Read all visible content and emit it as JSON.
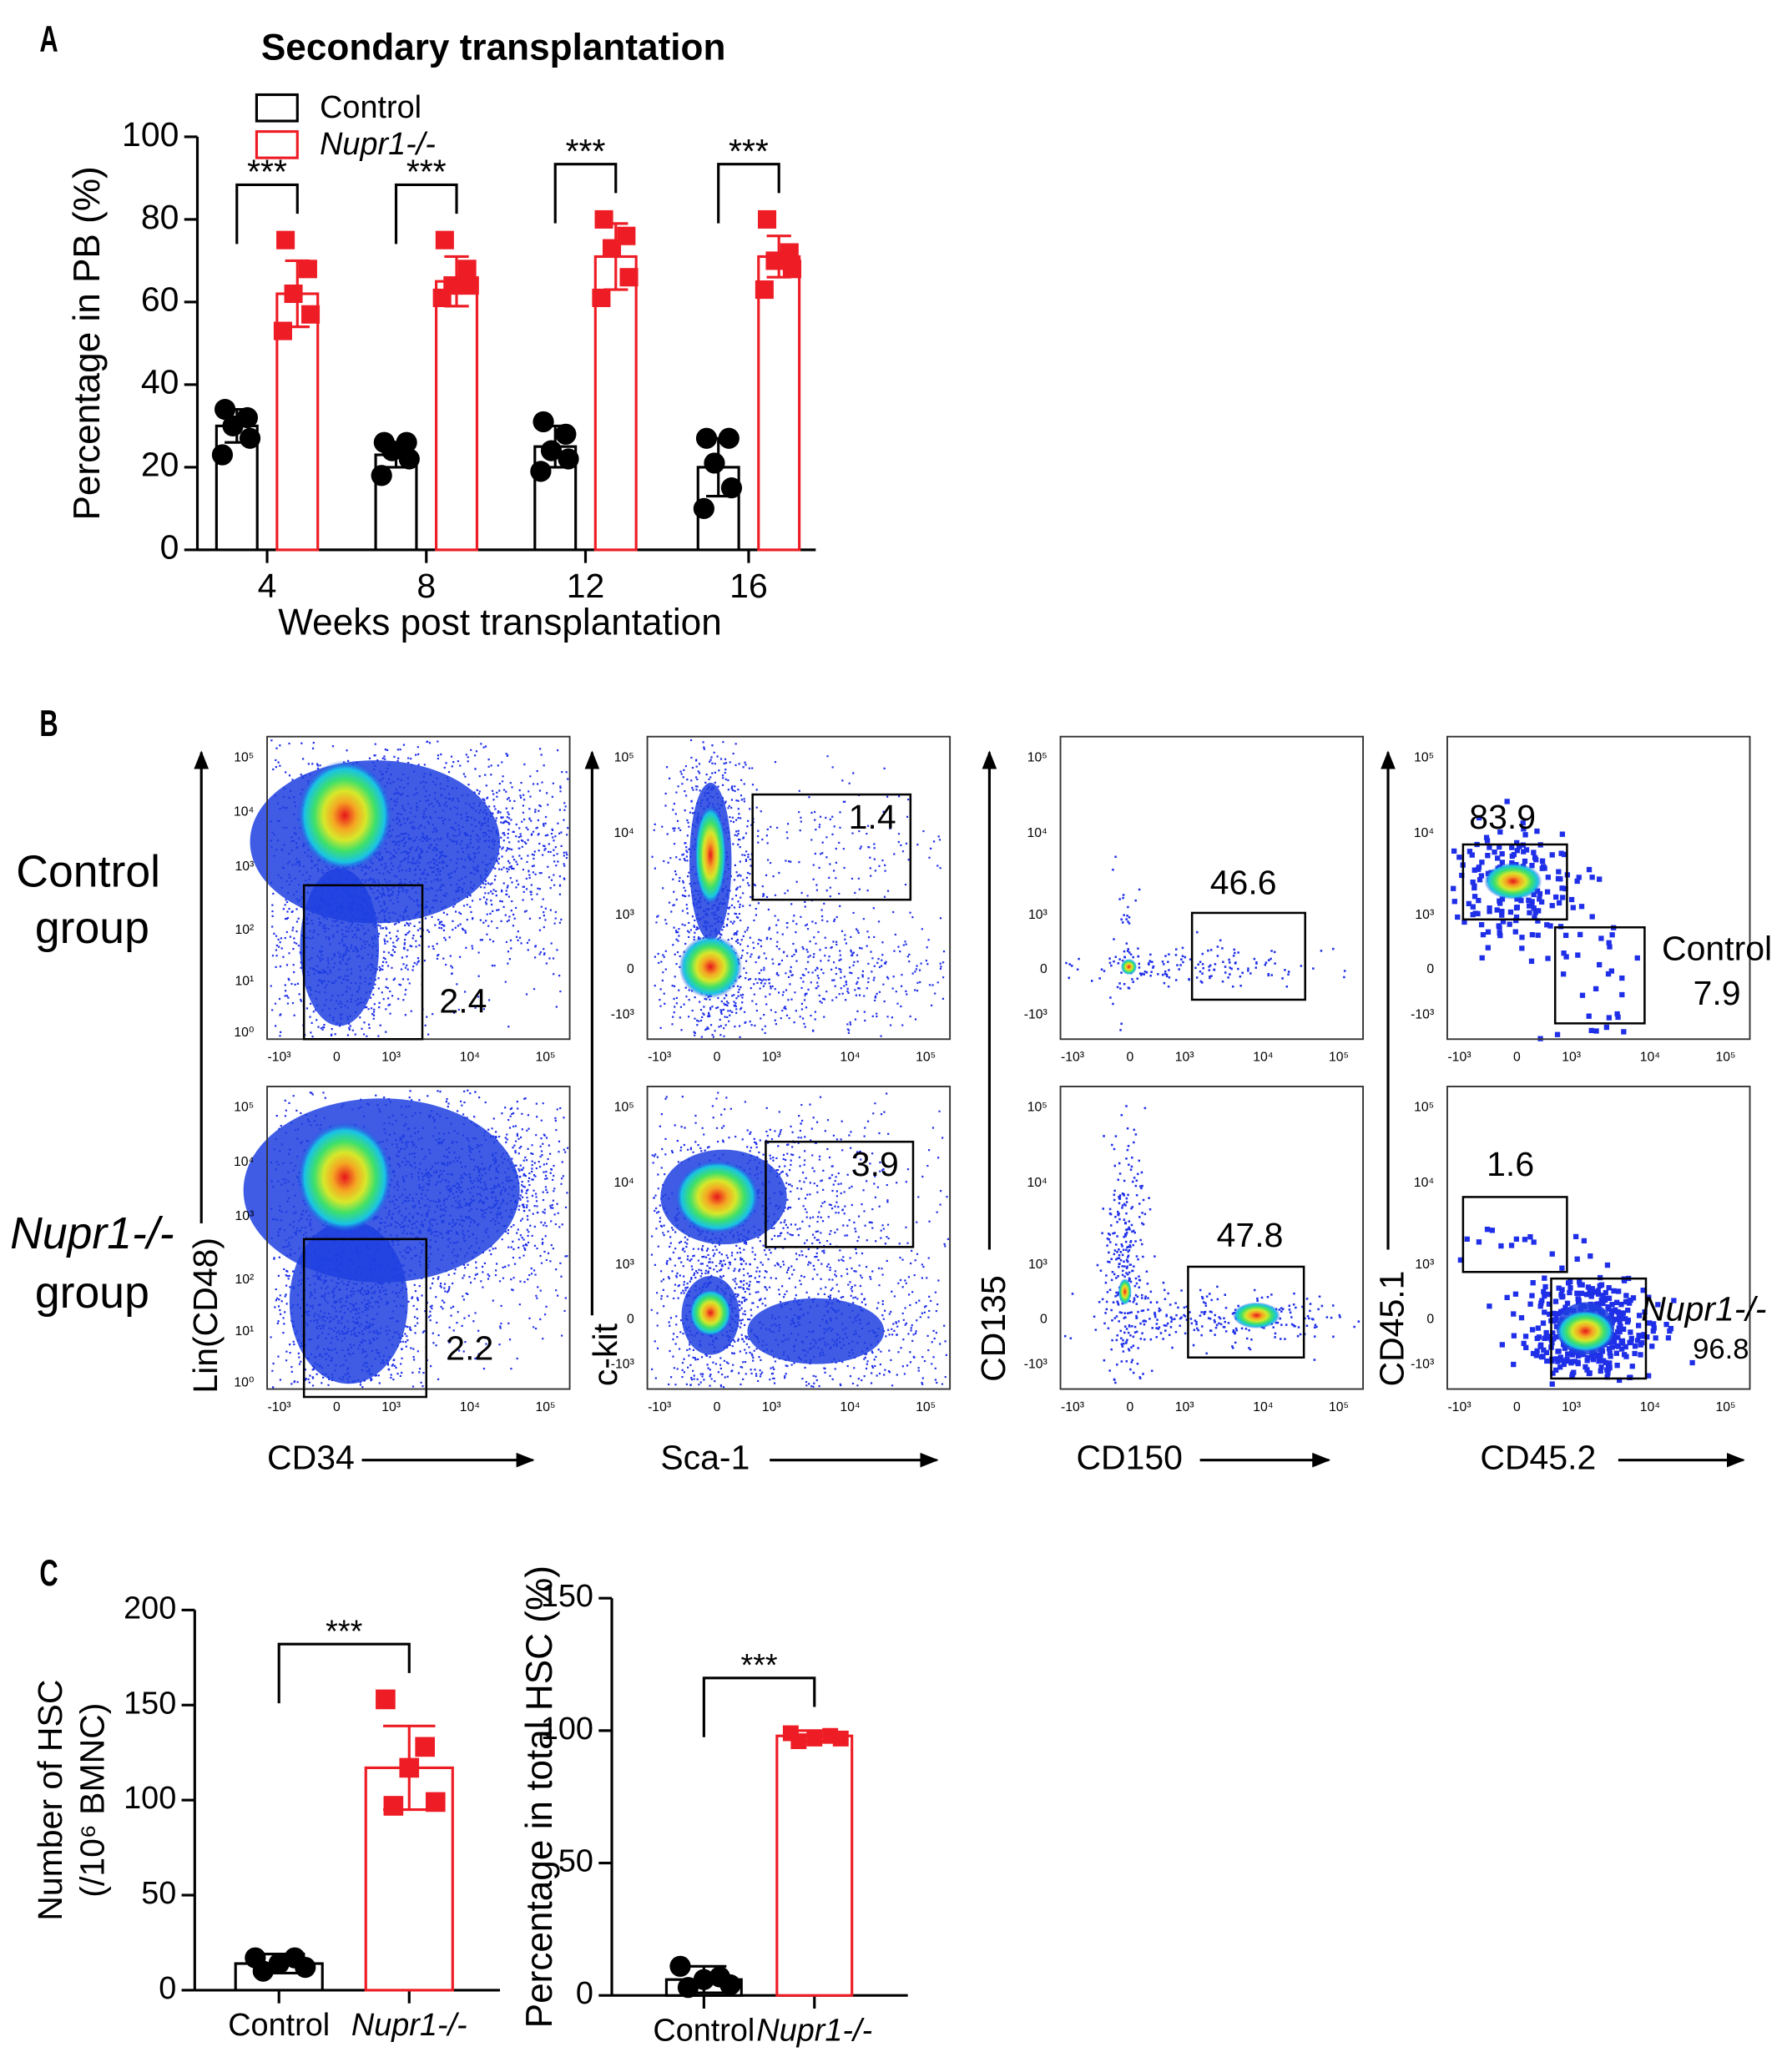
{
  "panel_labels": [
    "A",
    "B",
    "C"
  ],
  "row_labels": [
    [
      "Control",
      "group"
    ],
    [
      "Nupr1-/-",
      "group"
    ]
  ],
  "chart_data": [
    {
      "type": "bar",
      "title": "Secondary transplantation",
      "x_label": "Weeks post transplantation",
      "y_label": "Percentage in PB (%)",
      "categories": [
        "4",
        "8",
        "12",
        "16"
      ],
      "series": [
        {
          "name": "Control",
          "color": "#000000",
          "marker": "circle",
          "values": [
            30,
            23,
            25,
            20
          ],
          "errors": [
            4,
            3,
            5,
            7
          ],
          "points": [
            [
              34,
              32,
              30,
              27,
              23
            ],
            [
              26,
              26,
              24,
              22,
              18
            ],
            [
              31,
              28,
              24,
              22,
              19
            ],
            [
              27,
              27,
              21,
              15,
              10
            ]
          ]
        },
        {
          "name": "Nupr1-/-",
          "color": "#ee1c25",
          "marker": "square",
          "values": [
            62,
            65,
            71,
            71
          ],
          "errors": [
            8,
            6,
            8,
            5
          ],
          "points": [
            [
              75,
              68,
              62,
              57,
              53
            ],
            [
              75,
              68,
              64,
              64,
              61
            ],
            [
              80,
              76,
              73,
              66,
              61
            ],
            [
              80,
              72,
              70,
              68,
              63
            ]
          ]
        }
      ],
      "annotations": [
        "***",
        "***",
        "***",
        "***"
      ],
      "ylim": [
        0,
        100
      ],
      "yticks": [
        0,
        20,
        40,
        60,
        80,
        100
      ],
      "legend": "top-left"
    },
    {
      "type": "flow",
      "x_label": "CD34",
      "y_label": "Lin(CD48)",
      "xticks": [
        "-10³",
        "0",
        "10³",
        "10⁴",
        "10⁵"
      ],
      "yticks": [
        "10⁰",
        "10¹",
        "10²",
        "10³",
        "10⁴",
        "10⁵"
      ],
      "plots": [
        {
          "gates": [
            {
              "value": 2.4
            }
          ]
        },
        {
          "gates": [
            {
              "value": 2.2
            }
          ]
        }
      ]
    },
    {
      "type": "flow",
      "x_label": "Sca-1",
      "y_label": "c-kit",
      "xticks": [
        "-10³",
        "0",
        "10³",
        "10⁴",
        "10⁵"
      ],
      "yticks": [
        "-10³",
        "0",
        "10³",
        "10⁴",
        "10⁵"
      ],
      "plots": [
        {
          "gates": [
            {
              "value": 1.4
            }
          ]
        },
        {
          "gates": [
            {
              "value": 3.9
            }
          ]
        }
      ]
    },
    {
      "type": "flow",
      "x_label": "CD150",
      "y_label": "CD135",
      "xticks": [
        "-10³",
        "0",
        "10³",
        "10⁴",
        "10⁵"
      ],
      "yticks": [
        "-10³",
        "0",
        "10³",
        "10⁴",
        "10⁵"
      ],
      "plots": [
        {
          "gates": [
            {
              "value": 46.6
            }
          ]
        },
        {
          "gates": [
            {
              "value": 47.8
            }
          ]
        }
      ]
    },
    {
      "type": "flow",
      "x_label": "CD45.2",
      "y_label": "CD45.1",
      "xticks": [
        "-10³",
        "0",
        "10³",
        "10⁴",
        "10⁵"
      ],
      "yticks": [
        "-10³",
        "0",
        "10³",
        "10⁴",
        "10⁵"
      ],
      "plots": [
        {
          "gates": [
            {
              "value": 83.9
            },
            {
              "name": "Control",
              "value": 7.9
            }
          ]
        },
        {
          "gates": [
            {
              "value": 1.6
            },
            {
              "name": "Nupr1-/-",
              "value": 96.8,
              "color": "#ee1c25"
            }
          ]
        }
      ]
    },
    {
      "type": "bar",
      "y_label": [
        "Number of HSC",
        "(/10⁶ BMNC)"
      ],
      "categories": [
        "Control",
        "Nupr1-/-"
      ],
      "colors": [
        "#000000",
        "#ee1c25"
      ],
      "markers": [
        "circle",
        "square"
      ],
      "values": [
        14,
        117
      ],
      "errors": [
        5,
        22
      ],
      "points": [
        [
          17,
          17,
          14,
          12,
          10
        ],
        [
          153,
          128,
          117,
          99,
          97
        ]
      ],
      "annotation": "***",
      "ylim": [
        0,
        200
      ],
      "yticks": [
        0,
        50,
        100,
        150,
        200
      ]
    },
    {
      "type": "bar",
      "y_label": "Percentage in total HSC (%)",
      "categories": [
        "Control",
        "Nupr1-/-"
      ],
      "colors": [
        "#000000",
        "#ee1c25"
      ],
      "markers": [
        "circle",
        "square"
      ],
      "values": [
        6,
        98
      ],
      "errors": [
        5,
        2
      ],
      "points": [
        [
          11,
          7,
          6,
          4,
          3
        ],
        [
          99,
          98,
          97,
          97,
          96
        ]
      ],
      "annotation": "***",
      "ylim": [
        0,
        150
      ],
      "yticks": [
        0,
        50,
        100,
        150
      ]
    }
  ]
}
